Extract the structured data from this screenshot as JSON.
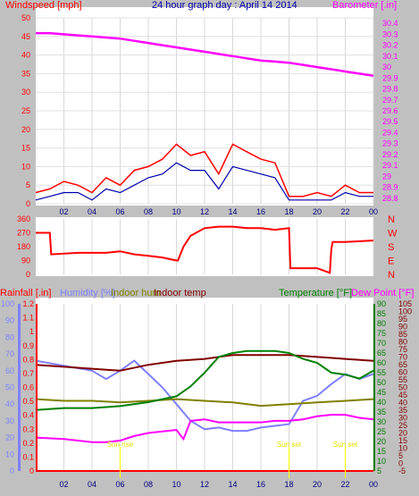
{
  "chart_data": [
    {
      "type": "line",
      "title": "24 hour graph day : April 14 2014",
      "y_left_label": "Windspeed [mph]",
      "y_right_label": "Barometer [.in]",
      "x_ticks": [
        "02",
        "04",
        "06",
        "08",
        "10",
        "12",
        "14",
        "16",
        "18",
        "20",
        "22",
        "00"
      ],
      "y_left_ticks": [
        "0",
        "5",
        "10",
        "15",
        "20",
        "25",
        "30",
        "35",
        "40",
        "45",
        "50"
      ],
      "y_left_range": [
        0,
        50
      ],
      "y_right_ticks": [
        "28.8",
        "28.9",
        "29",
        "29.1",
        "29.2",
        "29.3",
        "29.4",
        "29.5",
        "29.6",
        "29.7",
        "29.8",
        "29.9",
        "30",
        "30.1",
        "30.2",
        "30.3",
        "30.4"
      ],
      "y_right_range": [
        28.75,
        30.45
      ],
      "x_range": [
        0,
        24
      ],
      "series": [
        {
          "color": "#ff00ff",
          "axis": "right",
          "x": [
            0,
            1,
            2,
            3,
            4,
            5,
            6,
            7,
            8,
            9,
            10,
            11,
            12,
            13,
            14,
            15,
            16,
            17,
            18,
            19,
            20,
            21,
            22,
            23,
            24
          ],
          "y": [
            30.31,
            30.31,
            30.3,
            30.29,
            30.28,
            30.27,
            30.26,
            30.24,
            30.22,
            30.2,
            30.18,
            30.16,
            30.14,
            30.12,
            30.1,
            30.08,
            30.06,
            30.05,
            30.04,
            30.02,
            30.0,
            29.98,
            29.96,
            29.94,
            29.92
          ]
        },
        {
          "color": "#ff0000",
          "axis": "left",
          "x": [
            0,
            1,
            2,
            3,
            4,
            5,
            6,
            7,
            8,
            9,
            10,
            11,
            12,
            13,
            14,
            15,
            16,
            17,
            18,
            19,
            20,
            21,
            22,
            23,
            24
          ],
          "y": [
            3,
            4,
            6,
            5,
            3,
            7,
            5,
            9,
            10,
            12,
            16,
            13,
            14,
            8,
            16,
            14,
            12,
            11,
            2,
            2,
            3,
            2,
            5,
            3,
            3
          ]
        },
        {
          "color": "#0000aa",
          "axis": "left",
          "x": [
            0,
            1,
            2,
            3,
            4,
            5,
            6,
            7,
            8,
            9,
            10,
            11,
            12,
            13,
            14,
            15,
            16,
            17,
            18,
            19,
            20,
            21,
            22,
            23,
            24
          ],
          "y": [
            1,
            2,
            3,
            3,
            1,
            4,
            3,
            5,
            7,
            8,
            11,
            9,
            9,
            4,
            10,
            9,
            8,
            7,
            1,
            1,
            1,
            1,
            3,
            2,
            2
          ]
        }
      ]
    },
    {
      "type": "line",
      "y_left_ticks": [
        "0",
        "90",
        "180",
        "270",
        "360"
      ],
      "y_left_range": [
        0,
        360
      ],
      "y_right_ticks": [
        "N",
        "W",
        "S",
        "E",
        "N"
      ],
      "x_ticks": [
        "02",
        "04",
        "06",
        "08",
        "10",
        "12",
        "14",
        "16",
        "18",
        "20",
        "22",
        "00"
      ],
      "x_range": [
        0,
        24
      ],
      "series": [
        {
          "color": "#ff0000",
          "x": [
            0,
            0.1,
            1.0,
            1.1,
            3,
            5,
            6,
            7,
            8,
            9,
            10,
            10.1,
            10.5,
            11,
            12,
            13,
            14,
            15,
            16,
            17,
            18,
            18.1,
            20,
            20.9,
            21,
            21.1,
            22,
            24
          ],
          "y": [
            270,
            270,
            270,
            130,
            140,
            140,
            150,
            130,
            120,
            110,
            90,
            90,
            180,
            250,
            300,
            310,
            310,
            300,
            300,
            290,
            300,
            40,
            40,
            10,
            160,
            210,
            210,
            220
          ]
        }
      ]
    },
    {
      "type": "line",
      "legend": [
        "Rainfall [.in]",
        "Humidity [%]",
        "Indoor hum",
        "Indoor temp",
        "Temperature [°F]",
        "Dew Point [°F]"
      ],
      "x_ticks": [
        "02",
        "04",
        "06",
        "08",
        "10",
        "12",
        "14",
        "16",
        "18",
        "20",
        "22",
        "00"
      ],
      "x_range": [
        0,
        24
      ],
      "y_rain_ticks": [
        "0",
        "0.1",
        "0.2",
        "0.3",
        "0.4",
        "0.5",
        "0.6",
        "0.7",
        "0.8",
        "0.9",
        "1",
        "1.1",
        "1.2"
      ],
      "y_rain_range": [
        0,
        1.2
      ],
      "y_hum_ticks": [
        "0",
        "10",
        "20",
        "30",
        "40",
        "50",
        "60",
        "70",
        "80",
        "90",
        "100"
      ],
      "y_hum_range": [
        0,
        100
      ],
      "y_temp_ticks": [
        "5",
        "10",
        "15",
        "20",
        "25",
        "30",
        "35",
        "40",
        "45",
        "50",
        "55",
        "60",
        "65",
        "70",
        "75",
        "80",
        "85",
        "90"
      ],
      "y_temp_range": [
        5,
        90
      ],
      "y_dew_ticks": [
        "-5",
        "0",
        "5",
        "10",
        "15",
        "20",
        "25",
        "30",
        "35",
        "40",
        "45",
        "50",
        "55",
        "60",
        "65",
        "70",
        "75",
        "80",
        "85",
        "90",
        "95",
        "100",
        "105"
      ],
      "y_dew_range": [
        -5,
        105
      ],
      "annotations": [
        "Sun rise",
        "Sun set",
        "Sun set"
      ],
      "series": [
        {
          "name": "Humidity [%]",
          "color": "#8080ff",
          "axis": "hum",
          "x": [
            0,
            2,
            4,
            5,
            6,
            7,
            8,
            9,
            10,
            11,
            12,
            13,
            14,
            15,
            16,
            17,
            18,
            19,
            20,
            21,
            22,
            23,
            24
          ],
          "y": [
            66,
            63,
            60,
            55,
            60,
            66,
            58,
            50,
            40,
            30,
            25,
            26,
            24,
            24,
            26,
            27,
            28,
            42,
            45,
            52,
            58,
            55,
            58
          ]
        },
        {
          "name": "Indoor hum",
          "color": "#808000",
          "axis": "hum",
          "x": [
            0,
            2,
            4,
            6,
            8,
            10,
            12,
            14,
            16,
            18,
            20,
            22,
            24
          ],
          "y": [
            43,
            42,
            42,
            41,
            42,
            43,
            42,
            41,
            39,
            40,
            41,
            42,
            43
          ]
        },
        {
          "name": "Indoor temp",
          "color": "#800000",
          "axis": "temp",
          "x": [
            0,
            2,
            4,
            6,
            8,
            10,
            12,
            14,
            16,
            18,
            20,
            22,
            24
          ],
          "y": [
            59,
            58,
            57,
            56,
            59,
            61,
            62,
            64,
            64,
            64,
            63,
            62,
            61
          ]
        },
        {
          "name": "Temperature [°F]",
          "color": "#008000",
          "axis": "temp",
          "x": [
            0,
            2,
            4,
            6,
            8,
            10,
            11,
            12,
            13,
            14,
            15,
            16,
            17,
            18,
            19,
            20,
            21,
            22,
            23,
            24
          ],
          "y": [
            36,
            37,
            37,
            38,
            40,
            43,
            48,
            55,
            63,
            65,
            66,
            66,
            66,
            65,
            62,
            60,
            55,
            54,
            52,
            56
          ]
        },
        {
          "name": "Dew Point [°F]",
          "color": "#ff00ff",
          "axis": "dew",
          "x": [
            0,
            2,
            4,
            5,
            6,
            7,
            8,
            9,
            10,
            10.5,
            11,
            12,
            13,
            14,
            15,
            16,
            17,
            18,
            19,
            20,
            21,
            22,
            23,
            24
          ],
          "y": [
            17,
            16,
            14,
            14,
            15,
            18,
            20,
            21,
            22,
            16,
            28,
            29,
            27,
            27,
            27,
            27,
            28,
            28,
            29,
            31,
            32,
            32,
            30,
            29
          ]
        },
        {
          "name": "Rainfall [.in]",
          "color": "#ff0000",
          "axis": "rain",
          "x": [
            0,
            24
          ],
          "y": [
            0,
            0
          ]
        }
      ]
    }
  ]
}
